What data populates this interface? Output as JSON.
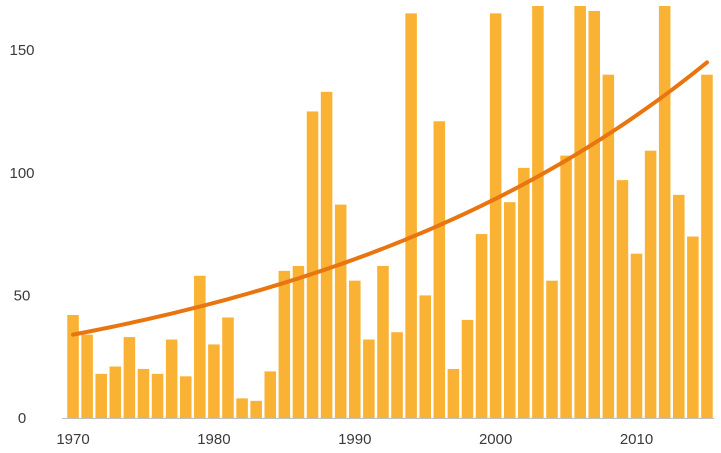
{
  "chart_data": {
    "type": "bar",
    "title": "",
    "xlabel": "",
    "ylabel": "",
    "ylim": [
      0,
      168
    ],
    "xlim": [
      1970,
      2015
    ],
    "x_tick_labels": [
      "1970",
      "1980",
      "1990",
      "2000",
      "2010"
    ],
    "y_tick_labels": [
      "0",
      "50",
      "100",
      "150"
    ],
    "grid": false,
    "legend": "none",
    "x": [
      1970,
      1971,
      1972,
      1973,
      1974,
      1975,
      1976,
      1977,
      1978,
      1979,
      1980,
      1981,
      1982,
      1983,
      1984,
      1985,
      1986,
      1987,
      1988,
      1989,
      1990,
      1991,
      1992,
      1993,
      1994,
      1995,
      1996,
      1997,
      1998,
      1999,
      2000,
      2001,
      2002,
      2003,
      2004,
      2005,
      2006,
      2007,
      2008,
      2009,
      2010,
      2011,
      2012,
      2013,
      2014,
      2015
    ],
    "values": [
      42,
      34,
      18,
      21,
      33,
      20,
      18,
      32,
      17,
      58,
      30,
      41,
      8,
      7,
      19,
      60,
      62,
      125,
      133,
      87,
      56,
      32,
      62,
      35,
      165,
      50,
      121,
      20,
      40,
      75,
      165,
      88,
      102,
      168,
      56,
      107,
      168,
      166,
      140,
      97,
      67,
      109,
      168,
      91,
      74,
      140
    ],
    "trend": {
      "type": "exponential",
      "start": [
        1970,
        34
      ],
      "end": [
        2015,
        145
      ]
    },
    "colors": {
      "bar": "#f9b233",
      "trend": "#e8750f",
      "axis": "#bfbfbf",
      "text": "#3a3a3a"
    }
  }
}
